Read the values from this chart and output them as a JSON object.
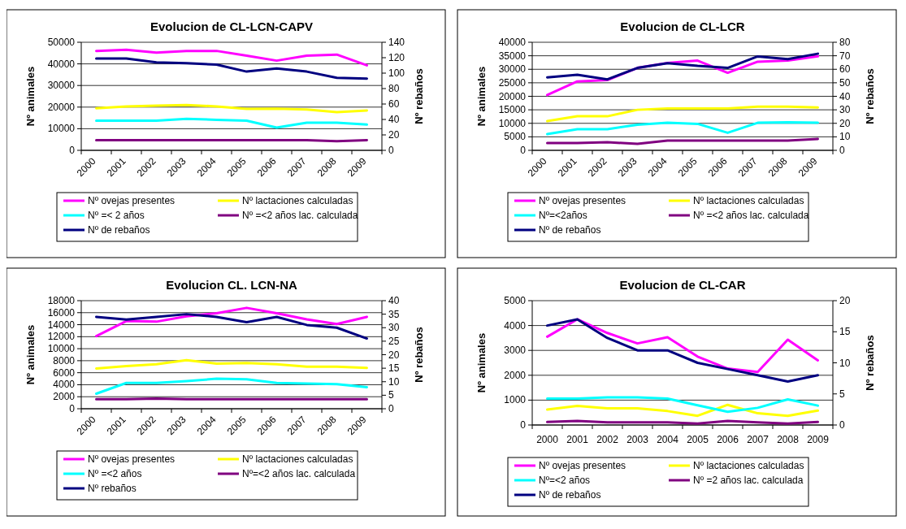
{
  "chart_data": [
    {
      "type": "line",
      "title": "Evolucion de CL-LCN-CAPV",
      "ylabel": "Nº animales",
      "y2label": "Nº rebaños",
      "categories": [
        "2000",
        "2001",
        "2002",
        "2003",
        "2004",
        "2005",
        "2006",
        "2007",
        "2008",
        "2009"
      ],
      "ylim": [
        0,
        50000
      ],
      "yticks": [
        0,
        10000,
        20000,
        30000,
        40000,
        50000
      ],
      "y2lim": [
        0,
        140
      ],
      "y2ticks": [
        0,
        20,
        40,
        60,
        80,
        100,
        120,
        140
      ],
      "grid": "y",
      "legend": "bottom",
      "marker": "none",
      "line_style": "solid",
      "series": [
        {
          "name": "Nº ovejas presentes",
          "color": "#ff00ff",
          "values": [
            46000,
            46500,
            45200,
            46000,
            46000,
            43800,
            41500,
            43800,
            44300,
            39300
          ]
        },
        {
          "name": "Nº lactaciones calculadas",
          "color": "#ffff00",
          "values": [
            19500,
            20300,
            20700,
            21000,
            20300,
            19200,
            19300,
            18900,
            17700,
            18400
          ]
        },
        {
          "name": "Nº =< 2 años",
          "color": "#00ffff",
          "values": [
            13700,
            13700,
            13700,
            14600,
            14100,
            13700,
            10500,
            12800,
            12800,
            11900
          ]
        },
        {
          "name": "Nº =<2 años lac. calculada",
          "color": "#800080",
          "values": [
            4700,
            4700,
            4700,
            4700,
            4700,
            4700,
            4700,
            4700,
            4200,
            4700
          ]
        },
        {
          "name": "Nº de rebaños",
          "color": "#000080",
          "axis": "y2",
          "values": [
            119,
            119,
            114,
            113,
            111,
            102,
            106,
            102,
            94,
            93
          ]
        }
      ]
    },
    {
      "type": "line",
      "title": "Evolucion de CL-LCR",
      "ylabel": "Nº animales",
      "y2label": "Nº rebaños",
      "categories": [
        "2000",
        "2001",
        "2002",
        "2003",
        "2004",
        "2005",
        "2006",
        "2007",
        "2008",
        "2009"
      ],
      "ylim": [
        0,
        40000
      ],
      "yticks": [
        0,
        5000,
        10000,
        15000,
        20000,
        25000,
        30000,
        35000,
        40000
      ],
      "y2lim": [
        0,
        80
      ],
      "y2ticks": [
        0,
        10,
        20,
        30,
        40,
        50,
        60,
        70,
        80
      ],
      "grid": "y",
      "legend": "bottom",
      "marker": "none",
      "line_style": "solid",
      "series": [
        {
          "name": "Nº ovejas presentes",
          "color": "#ff00ff",
          "values": [
            20500,
            25500,
            26000,
            30500,
            32300,
            33200,
            28700,
            32800,
            33200,
            34800
          ]
        },
        {
          "name": "Nº lactaciones calculadas",
          "color": "#ffff00",
          "values": [
            10800,
            12600,
            12600,
            15000,
            15500,
            15500,
            15500,
            16200,
            16200,
            15900
          ]
        },
        {
          "name": "Nº=<2años",
          "color": "#00ffff",
          "values": [
            6000,
            7800,
            7800,
            9500,
            10200,
            9800,
            6500,
            10200,
            10400,
            10200
          ]
        },
        {
          "name": "Nº =<2 años  lac. calculada",
          "color": "#800080",
          "values": [
            2700,
            2700,
            3000,
            2400,
            3600,
            3600,
            3600,
            3600,
            3600,
            4200
          ]
        },
        {
          "name": "Nº de rebaños",
          "color": "#000080",
          "axis": "y2",
          "values": [
            54,
            56,
            52.5,
            61,
            64.5,
            62.5,
            61,
            69.5,
            67.5,
            71.5
          ]
        }
      ]
    },
    {
      "type": "line",
      "title": "Evolucion CL. LCN-NA",
      "ylabel": "Nº animales",
      "y2label": "Nº rebaños",
      "categories": [
        "2000",
        "2001",
        "2002",
        "2003",
        "2004",
        "2005",
        "2006",
        "2007",
        "2008",
        "2009"
      ],
      "ylim": [
        0,
        18000
      ],
      "yticks": [
        0,
        2000,
        4000,
        6000,
        8000,
        10000,
        12000,
        14000,
        16000,
        18000
      ],
      "y2lim": [
        0,
        40
      ],
      "y2ticks": [
        0,
        5,
        10,
        15,
        20,
        25,
        30,
        35,
        40
      ],
      "grid": "y",
      "legend": "bottom",
      "marker": "none",
      "line_style": "solid",
      "series": [
        {
          "name": "Nº ovejas presentes",
          "color": "#ff00ff",
          "values": [
            12100,
            14600,
            14500,
            15400,
            15900,
            16800,
            15900,
            14900,
            14100,
            15300
          ]
        },
        {
          "name": "Nº lactaciones calculadas",
          "color": "#ffff00",
          "values": [
            6700,
            7100,
            7400,
            8100,
            7500,
            7600,
            7400,
            7000,
            7000,
            6800
          ]
        },
        {
          "name": "Nº =<2 años",
          "color": "#00ffff",
          "values": [
            2500,
            4300,
            4300,
            4600,
            5000,
            4900,
            4300,
            4200,
            4100,
            3600
          ]
        },
        {
          "name": "Nº=<2 años  lac. calculada",
          "color": "#800080",
          "values": [
            1600,
            1600,
            1700,
            1600,
            1600,
            1600,
            1600,
            1600,
            1600,
            1600
          ]
        },
        {
          "name": "Nº rebaños",
          "color": "#000080",
          "axis": "y2",
          "values": [
            34,
            33,
            34,
            35,
            34,
            32,
            34,
            31,
            30,
            26
          ]
        }
      ]
    },
    {
      "type": "line",
      "title": "Evolucion de CL-CAR",
      "ylabel": "Nº animales",
      "y2label": "Nº rebaños",
      "categories": [
        "2000",
        "2001",
        "2002",
        "2003",
        "2004",
        "2005",
        "2006",
        "2007",
        "2008",
        "2009"
      ],
      "ylim": [
        0,
        5000
      ],
      "yticks": [
        0,
        1000,
        2000,
        3000,
        4000,
        5000
      ],
      "y2lim": [
        0,
        20
      ],
      "y2ticks": [
        0,
        5,
        10,
        15,
        20
      ],
      "grid": "y",
      "legend": "bottom",
      "marker": "none",
      "line_style": "solid",
      "series": [
        {
          "name": "Nº ovejas presentes",
          "color": "#ff00ff",
          "values": [
            3550,
            4250,
            3700,
            3280,
            3530,
            2750,
            2270,
            2130,
            3430,
            2600
          ]
        },
        {
          "name": "Nº lactaciones calculadas",
          "color": "#ffff00",
          "values": [
            620,
            770,
            670,
            670,
            560,
            370,
            810,
            470,
            370,
            580
          ]
        },
        {
          "name": "Nº=<2 años",
          "color": "#00ffff",
          "values": [
            1060,
            1060,
            1110,
            1110,
            1060,
            790,
            530,
            690,
            1030,
            780
          ]
        },
        {
          "name": "Nº =2 años lac. calculada",
          "color": "#800080",
          "values": [
            120,
            160,
            110,
            110,
            110,
            60,
            160,
            110,
            60,
            120
          ]
        },
        {
          "name": "Nº de rebaños",
          "color": "#000080",
          "axis": "y2",
          "values": [
            16,
            17,
            14,
            12,
            12,
            10,
            9,
            8,
            7,
            8
          ]
        }
      ]
    }
  ]
}
